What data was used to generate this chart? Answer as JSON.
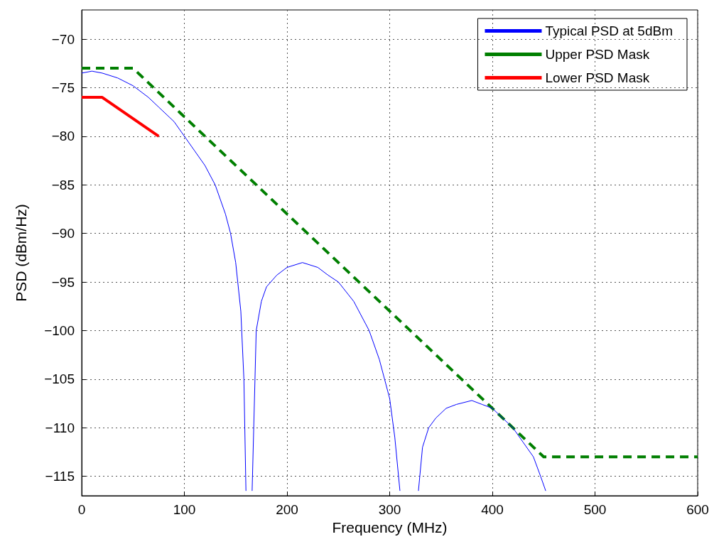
{
  "chart_data": {
    "type": "line",
    "xlabel": "Frequency (MHz)",
    "ylabel": "PSD (dBm/Hz)",
    "xlim": [
      0,
      600
    ],
    "xticks": [
      0,
      100,
      200,
      300,
      400,
      500,
      600
    ],
    "ylim": [
      -117,
      -67
    ],
    "yticks": [
      -115,
      -110,
      -105,
      -100,
      -95,
      -90,
      -85,
      -80,
      -75,
      -70
    ],
    "grid": true,
    "legend": "top right",
    "marker": "none",
    "series": [
      {
        "name": "Typical PSD at 5dBm",
        "color": "#0000ff",
        "line_style": "solid",
        "x": [
          0,
          10,
          20,
          35,
          50,
          65,
          75,
          90,
          100,
          110,
          120,
          130,
          140,
          145,
          150,
          155,
          158,
          160,
          163,
          166,
          170,
          175,
          180,
          190,
          200,
          215,
          230,
          240,
          250,
          265,
          280,
          290,
          300,
          305,
          310,
          320,
          328,
          332,
          338,
          345,
          355,
          365,
          380,
          390,
          400,
          410,
          420,
          430,
          440,
          447,
          452
        ],
        "values": [
          -73.5,
          -73.3,
          -73.5,
          -74,
          -74.8,
          -76,
          -77,
          -78.5,
          -80,
          -81.5,
          -83,
          -85,
          -88,
          -90,
          -93,
          -98,
          -105,
          -116.5,
          null,
          -116.5,
          -100,
          -97,
          -95.5,
          -94.3,
          -93.5,
          -93,
          -93.5,
          -94.3,
          -95,
          -97,
          -100,
          -103,
          -107,
          -111,
          -116.5,
          null,
          -116.5,
          -112,
          -110,
          -109,
          -108,
          -107.6,
          -107.2,
          -107.6,
          -108,
          -109,
          -110,
          -111.5,
          -113,
          -115,
          -116.5
        ]
      },
      {
        "name": "Upper PSD Mask",
        "color": "#007f00",
        "line_style": "dashed",
        "x": [
          0,
          50,
          450,
          600
        ],
        "values": [
          -73,
          -73,
          -113,
          -113
        ]
      },
      {
        "name": "Lower PSD Mask",
        "color": "#ff0000",
        "line_style": "solid",
        "x": [
          0,
          20,
          75
        ],
        "values": [
          -76,
          -76,
          -80
        ]
      }
    ]
  }
}
